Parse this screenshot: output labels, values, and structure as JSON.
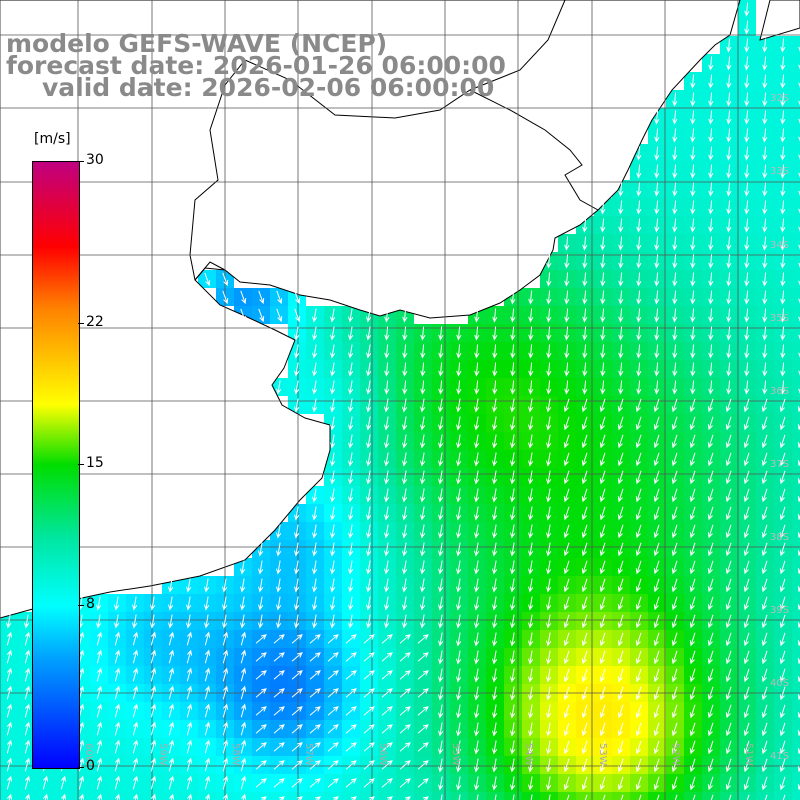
{
  "title": {
    "line1": "modelo GEFS-WAVE (NCEP)",
    "line2": "forecast date: 2026-01-26 06:00:00",
    "line3": "valid date: 2026-02-06 06:00:00"
  },
  "colorbar": {
    "unit": "[m/s]",
    "min": 0,
    "max": 30,
    "ticks": [
      {
        "label": "30",
        "value": 30
      },
      {
        "label": "22",
        "value": 22
      },
      {
        "label": "15",
        "value": 15
      },
      {
        "label": "8",
        "value": 8
      },
      {
        "label": "0",
        "value": 0
      }
    ]
  },
  "map": {
    "latitude_labels": [
      "32S",
      "33S",
      "34S",
      "35S",
      "36S",
      "37S",
      "38S",
      "39S",
      "40S",
      "41S"
    ],
    "longitude_labels": [
      "60W",
      "59W",
      "58W",
      "57W",
      "56W",
      "55W",
      "54W",
      "53W",
      "52W",
      "51W"
    ],
    "land_color": "#ffffff",
    "vector_color": "#ffffff",
    "dominant_vector_direction": "toward south-southwest"
  }
}
